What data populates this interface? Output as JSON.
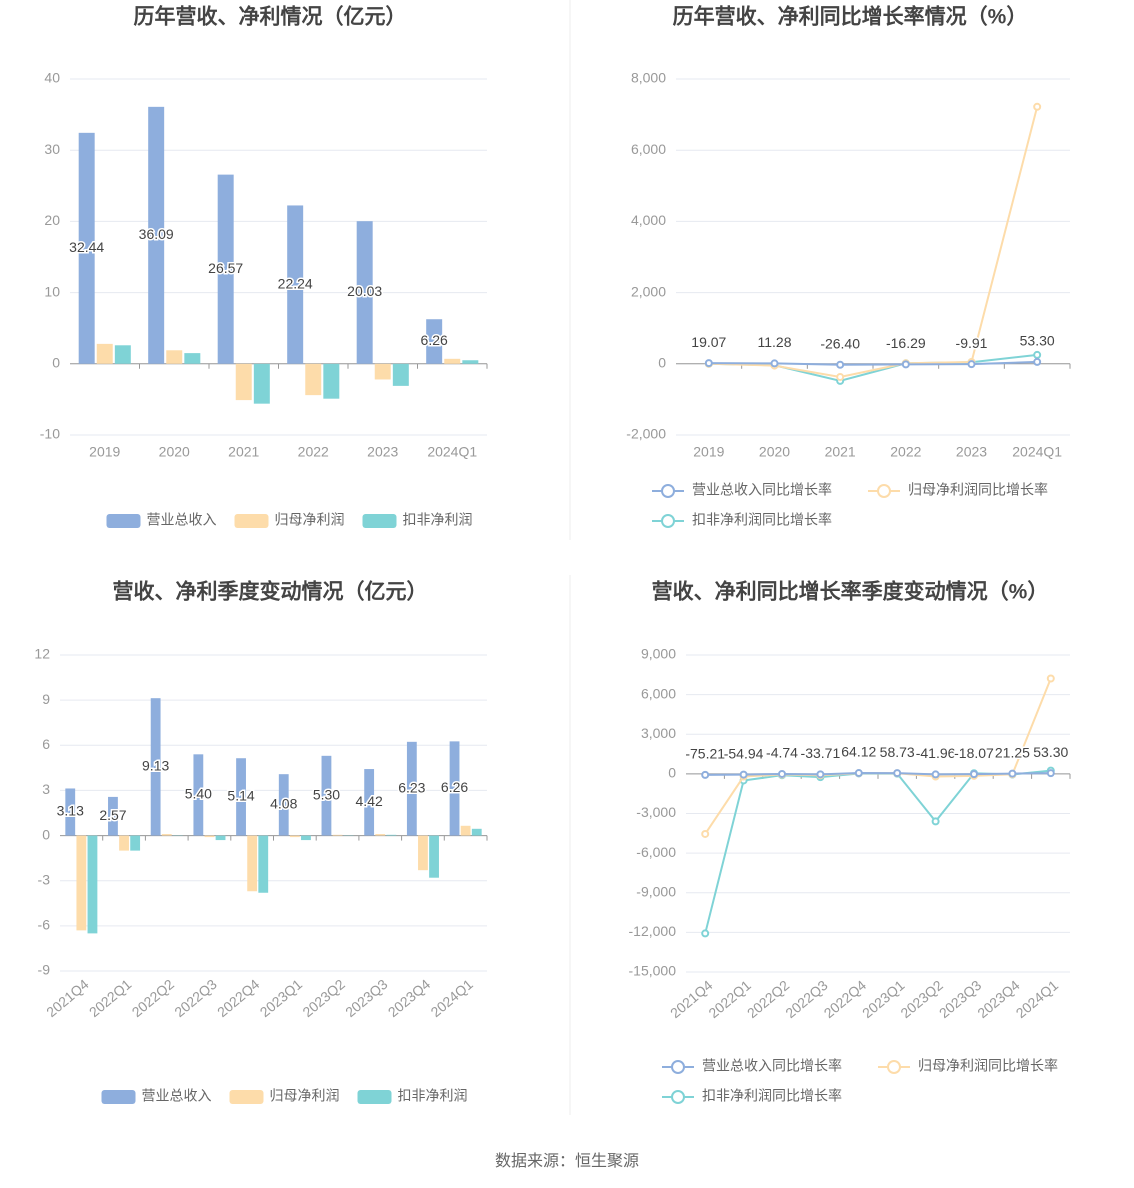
{
  "chart_data": [
    {
      "type": "bar",
      "title": "历年营收、净利情况（亿元）",
      "categories": [
        "2019",
        "2020",
        "2021",
        "2022",
        "2023",
        "2024Q1"
      ],
      "series": [
        {
          "name": "营业总收入",
          "color": "#8eaedd",
          "labels": true,
          "values": [
            32.44,
            36.09,
            26.57,
            22.24,
            20.03,
            6.26
          ]
        },
        {
          "name": "归母净利润",
          "color": "#fddcaa",
          "values": [
            2.8,
            1.9,
            -5.1,
            -4.4,
            -2.2,
            0.7
          ]
        },
        {
          "name": "扣非净利润",
          "color": "#7fd3d6",
          "values": [
            2.6,
            1.5,
            -5.6,
            -4.9,
            -3.1,
            0.5
          ]
        }
      ],
      "ylim": [
        -10,
        40
      ],
      "yticks": [
        -10,
        0,
        10,
        20,
        30,
        40
      ],
      "grid": true
    },
    {
      "type": "line",
      "title": "历年营收、净利同比增长率情况（%）",
      "categories": [
        "2019",
        "2020",
        "2021",
        "2022",
        "2023",
        "2024Q1"
      ],
      "series": [
        {
          "name": "营业总收入同比增长率",
          "color": "#8eaedd",
          "labels": true,
          "values": [
            19.07,
            11.28,
            -26.4,
            -16.29,
            -9.91,
            53.3
          ],
          "value_labels": [
            "19.07",
            "11.28",
            "-26.40",
            "-16.29",
            "-9.91",
            "53.30"
          ]
        },
        {
          "name": "归母净利润同比增长率",
          "color": "#fddcaa",
          "values": [
            0,
            -50,
            -370,
            15,
            50,
            7220
          ]
        },
        {
          "name": "扣非净利润同比增长率",
          "color": "#7fd3d6",
          "values": [
            0,
            -40,
            -480,
            14,
            45,
            250
          ]
        }
      ],
      "ylim": [
        -2000,
        8000
      ],
      "yticks": [
        {
          "value": -2000,
          "label": "-2,000"
        },
        0,
        {
          "value": 2000,
          "label": "2,000"
        },
        {
          "value": 4000,
          "label": "4,000"
        },
        {
          "value": 6000,
          "label": "6,000"
        },
        {
          "value": 8000,
          "label": "8,000"
        }
      ],
      "grid": true
    },
    {
      "type": "bar",
      "title": "营收、净利季度变动情况（亿元）",
      "categories": [
        "2021Q4",
        "2022Q1",
        "2022Q2",
        "2022Q3",
        "2022Q4",
        "2023Q1",
        "2023Q2",
        "2023Q3",
        "2023Q4",
        "2024Q1"
      ],
      "series": [
        {
          "name": "营业总收入",
          "color": "#8eaedd",
          "labels": true,
          "values": [
            3.13,
            2.57,
            9.13,
            5.4,
            5.14,
            4.08,
            5.3,
            4.42,
            6.23,
            6.26
          ],
          "value_labels": [
            "3.13",
            "2.57",
            "9.13",
            "5.40",
            "5.14",
            "4.08",
            "5.30",
            "4.42",
            "6.23",
            "6.26"
          ]
        },
        {
          "name": "归母净利润",
          "color": "#fddcaa",
          "values": [
            -6.3,
            -1.0,
            0.1,
            -0.1,
            -3.7,
            -0.1,
            0.05,
            0.1,
            -2.3,
            0.65
          ]
        },
        {
          "name": "扣非净利润",
          "color": "#7fd3d6",
          "values": [
            -6.5,
            -1.0,
            0.02,
            -0.3,
            -3.8,
            -0.3,
            0.02,
            0.05,
            -2.8,
            0.45
          ]
        }
      ],
      "ylim": [
        -9,
        12
      ],
      "yticks": [
        -9,
        -6,
        -3,
        0,
        3,
        6,
        9,
        12
      ],
      "grid": true,
      "rotate_labels": true
    },
    {
      "type": "line",
      "title": "营收、净利同比增长率季度变动情况（%）",
      "categories": [
        "2021Q4",
        "2022Q1",
        "2022Q2",
        "2022Q3",
        "2022Q4",
        "2023Q1",
        "2023Q2",
        "2023Q3",
        "2023Q4",
        "2024Q1"
      ],
      "series": [
        {
          "name": "营业总收入同比增长率",
          "color": "#8eaedd",
          "labels": true,
          "values": [
            -75.21,
            -54.94,
            -4.74,
            -33.71,
            64.12,
            58.73,
            -41.96,
            -18.07,
            21.25,
            53.3
          ],
          "value_labels": [
            "-75.21",
            "-54.94",
            "-4.74",
            "-33.71",
            "64.12",
            "58.73",
            "-41.96",
            "-18.07",
            "21.25",
            "53.30"
          ]
        },
        {
          "name": "归母净利润同比增长率",
          "color": "#fddcaa",
          "values": [
            -4550,
            -200,
            -50,
            -100,
            50,
            50,
            -200,
            -150,
            -30,
            7220
          ]
        },
        {
          "name": "扣非净利润同比增长率",
          "color": "#7fd3d6",
          "values": [
            -12080,
            -500,
            -100,
            -250,
            30,
            20,
            -3600,
            50,
            -50,
            250
          ]
        }
      ],
      "ylim": [
        -15000,
        9000
      ],
      "yticks": [
        {
          "value": -15000,
          "label": "-15,000"
        },
        {
          "value": -12000,
          "label": "-12,000"
        },
        {
          "value": -9000,
          "label": "-9,000"
        },
        {
          "value": -6000,
          "label": "-6,000"
        },
        {
          "value": -3000,
          "label": "-3,000"
        },
        0,
        {
          "value": 3000,
          "label": "3,000"
        },
        {
          "value": 6000,
          "label": "6,000"
        },
        {
          "value": 9000,
          "label": "9,000"
        }
      ],
      "grid": true,
      "rotate_labels": true
    }
  ],
  "source": "数据来源：恒生聚源"
}
